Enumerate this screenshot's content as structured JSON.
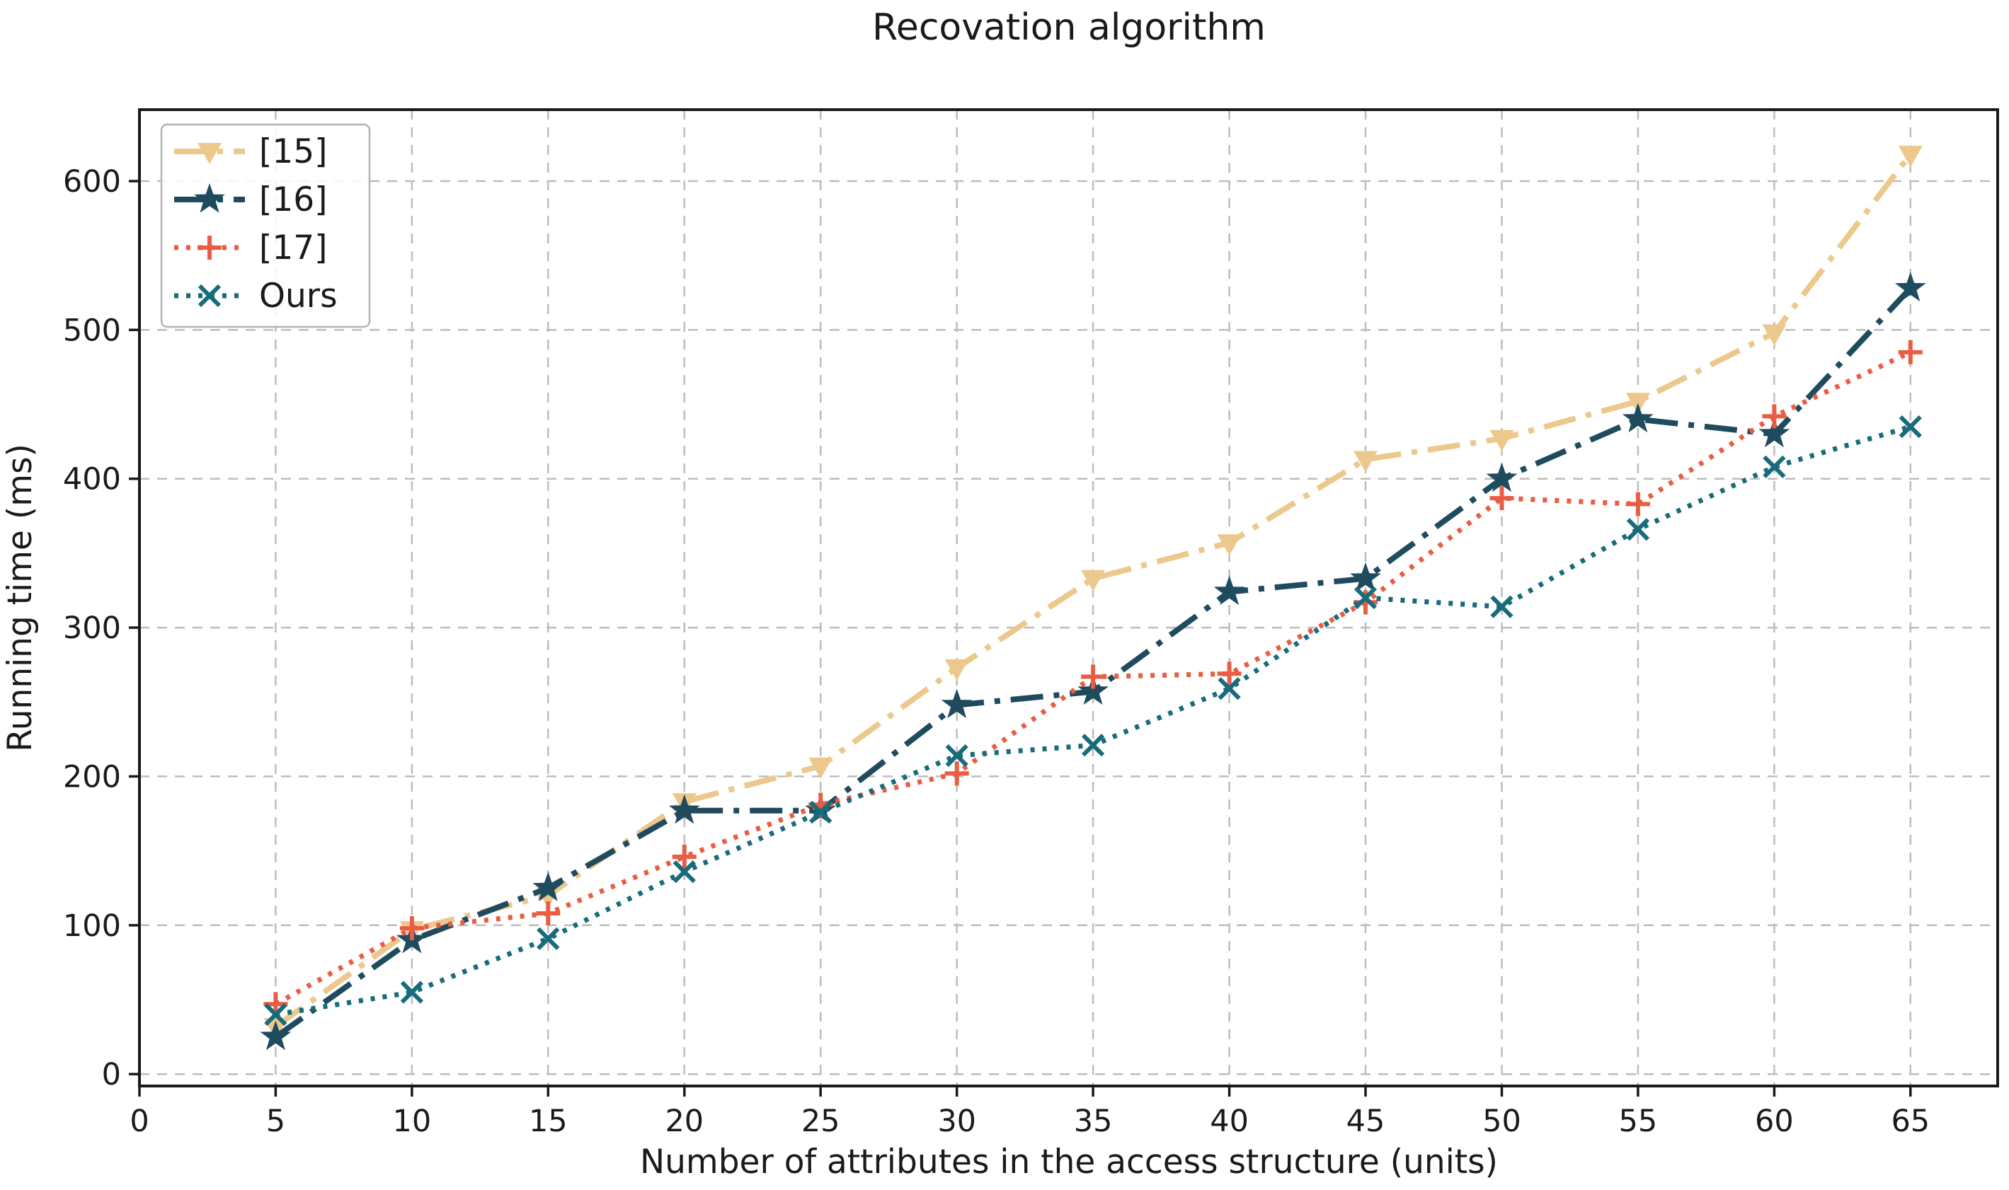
{
  "chart_data": {
    "type": "line",
    "title": "Recovation algorithm",
    "xlabel": "Number of attributes in the access structure (units)",
    "ylabel": "Running time (ms)",
    "x": [
      5,
      10,
      15,
      20,
      25,
      30,
      35,
      40,
      45,
      50,
      55,
      60,
      65
    ],
    "series": [
      {
        "name": "[15]",
        "color": "#ecc88c",
        "linestyle": "dashdot",
        "marker": "triangle-down",
        "values": [
          32,
          97,
          120,
          183,
          207,
          273,
          333,
          357,
          413,
          427,
          452,
          498,
          618
        ]
      },
      {
        "name": "[16]",
        "color": "#1f4b5e",
        "linestyle": "dashdot",
        "marker": "star",
        "values": [
          25,
          90,
          125,
          177,
          177,
          248,
          257,
          324,
          333,
          400,
          440,
          430,
          528
        ]
      },
      {
        "name": "[17]",
        "color": "#e95d44",
        "linestyle": "dotted",
        "marker": "plus",
        "values": [
          47,
          98,
          108,
          146,
          181,
          202,
          267,
          269,
          317,
          387,
          383,
          442,
          485
        ]
      },
      {
        "name": "Ours",
        "color": "#186b7b",
        "linestyle": "dotted",
        "marker": "x",
        "values": [
          40,
          55,
          91,
          136,
          176,
          214,
          221,
          259,
          320,
          314,
          366,
          408,
          435
        ]
      }
    ],
    "xticks": [
      0,
      5,
      10,
      15,
      20,
      25,
      30,
      35,
      40,
      45,
      50,
      55,
      60,
      65
    ],
    "yticks": [
      0,
      100,
      200,
      300,
      400,
      500,
      600
    ],
    "xlim": [
      0,
      68.2
    ],
    "ylim": [
      -8,
      648
    ],
    "grid": true,
    "legend_position": "upper-left",
    "style": {
      "axis_color": "#1a1a1a",
      "grid_color": "#bdbdbd",
      "legend_border_color": "#b3b3b3",
      "background_color": "#ffffff"
    }
  }
}
